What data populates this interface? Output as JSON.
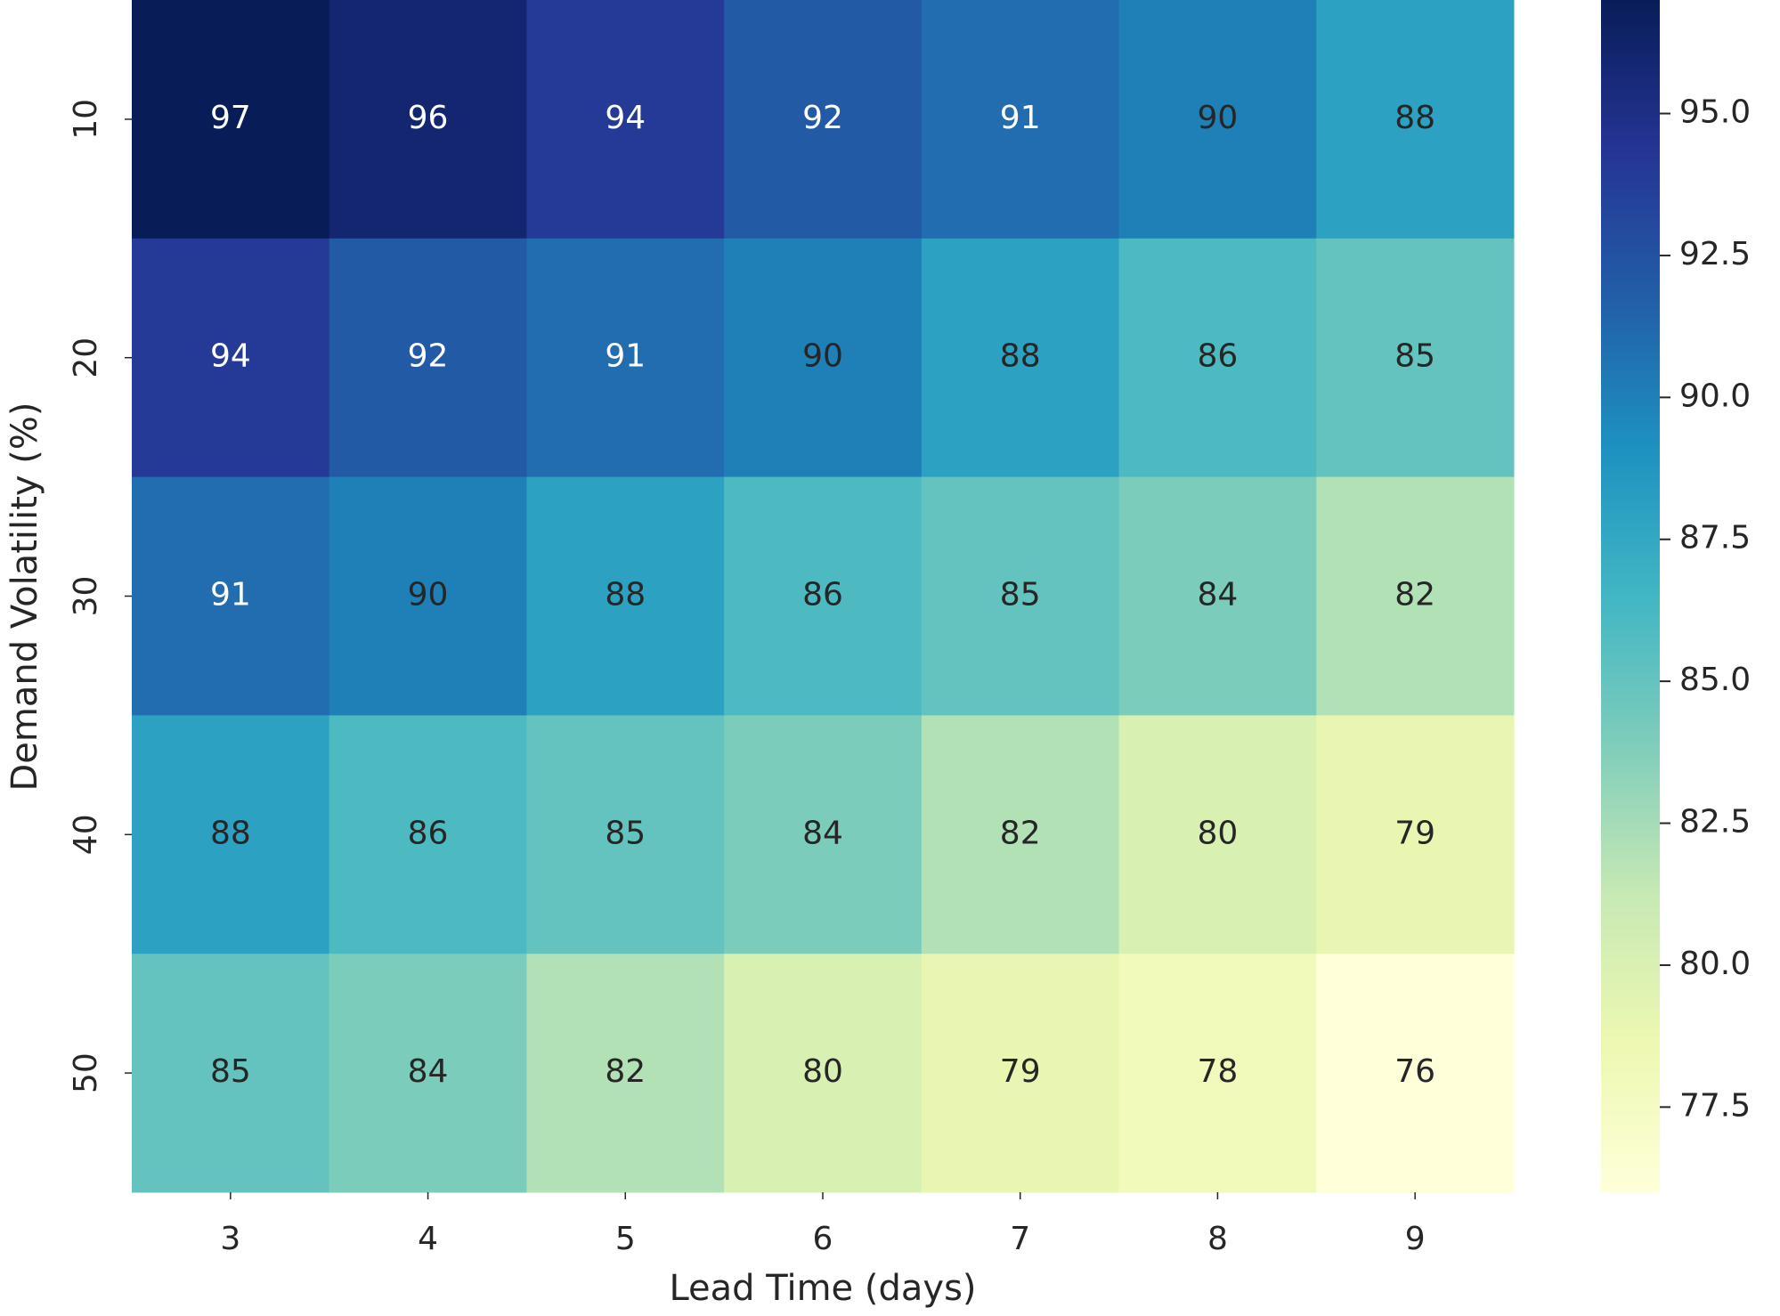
{
  "chart_data": {
    "type": "heatmap",
    "x_label": "Lead Time (days)",
    "y_label": "Demand Volatility (%)",
    "x_categories": [
      "3",
      "4",
      "5",
      "6",
      "7",
      "8",
      "9"
    ],
    "y_categories": [
      "10",
      "20",
      "30",
      "40",
      "50"
    ],
    "values": [
      [
        97,
        96,
        94,
        92,
        91,
        90,
        88
      ],
      [
        94,
        92,
        91,
        90,
        88,
        86,
        85
      ],
      [
        91,
        90,
        88,
        86,
        85,
        84,
        82
      ],
      [
        88,
        86,
        85,
        84,
        82,
        80,
        79
      ],
      [
        85,
        84,
        82,
        80,
        79,
        78,
        76
      ]
    ],
    "colormap": "YlGnBu",
    "clim": [
      76,
      97
    ],
    "colorbar_ticks": [
      77.5,
      {
        "value": 80,
        "label": "80.0"
      },
      82.5,
      {
        "value": 85,
        "label": "85.0"
      },
      87.5,
      {
        "value": 90,
        "label": "90.0"
      },
      92.5,
      {
        "value": 95,
        "label": "95.0"
      }
    ]
  }
}
